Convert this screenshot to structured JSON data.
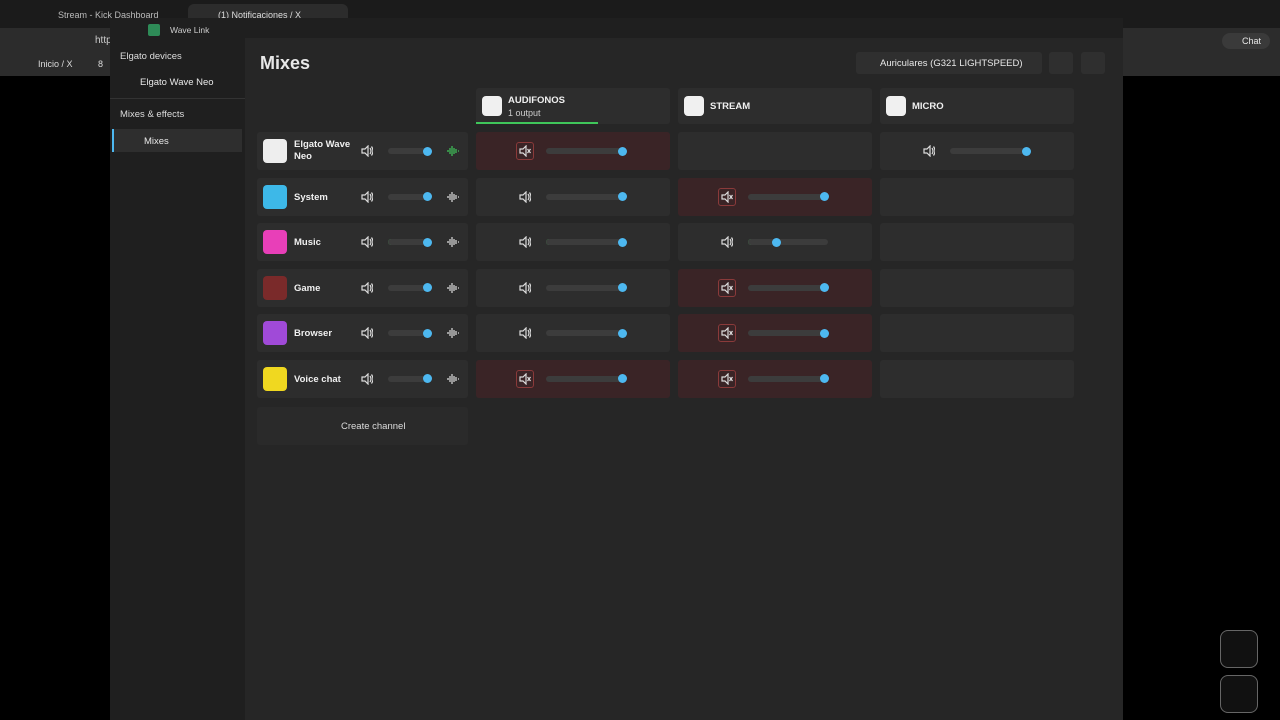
{
  "browser": {
    "tabs": [
      "Stream - Kick Dashboard",
      "(1) Notificaciones / X"
    ],
    "address": "http",
    "bookmarks": [
      "Inicio / X",
      "8"
    ],
    "chat": "Chat"
  },
  "app": {
    "title": "Wave Link",
    "sidebar": {
      "devices_heading": "Elgato devices",
      "device": "Elgato Wave Neo",
      "mixes_heading": "Mixes & effects",
      "mixes_item": "Mixes"
    },
    "page_title": "Mixes",
    "output_device": "Auriculares (G321 LIGHTSPEED)",
    "mixes": [
      {
        "name": "AUDIFONOS",
        "subtitle": "1 output"
      },
      {
        "name": "STREAM"
      },
      {
        "name": "MICRO"
      }
    ],
    "channels": [
      {
        "name": "Elgato Wave Neo",
        "color": "#eeeeee",
        "level": 90,
        "mixes": [
          {
            "level": 96,
            "muted": true
          },
          null,
          {
            "level": 95,
            "muted": false
          }
        ]
      },
      {
        "name": "System",
        "color": "#3db8e8",
        "level": 90,
        "mixes": [
          {
            "level": 96,
            "muted": false
          },
          {
            "level": 96,
            "muted": true
          },
          null
        ]
      },
      {
        "name": "Music",
        "color": "#e83fb8",
        "level": 90,
        "mixes": [
          {
            "level": 96,
            "muted": false
          },
          {
            "level": 35,
            "muted": false
          },
          null
        ]
      },
      {
        "name": "Game",
        "color": "#7a2a2a",
        "level": 90,
        "mixes": [
          {
            "level": 96,
            "muted": false
          },
          {
            "level": 96,
            "muted": true
          },
          null
        ]
      },
      {
        "name": "Browser",
        "color": "#a04ad8",
        "level": 90,
        "mixes": [
          {
            "level": 96,
            "muted": false
          },
          {
            "level": 96,
            "muted": true
          },
          null
        ]
      },
      {
        "name": "Voice chat",
        "color": "#f0d820",
        "level": 90,
        "mixes": [
          {
            "level": 96,
            "muted": true
          },
          {
            "level": 96,
            "muted": true
          },
          null
        ]
      }
    ],
    "create_channel": "Create channel"
  }
}
